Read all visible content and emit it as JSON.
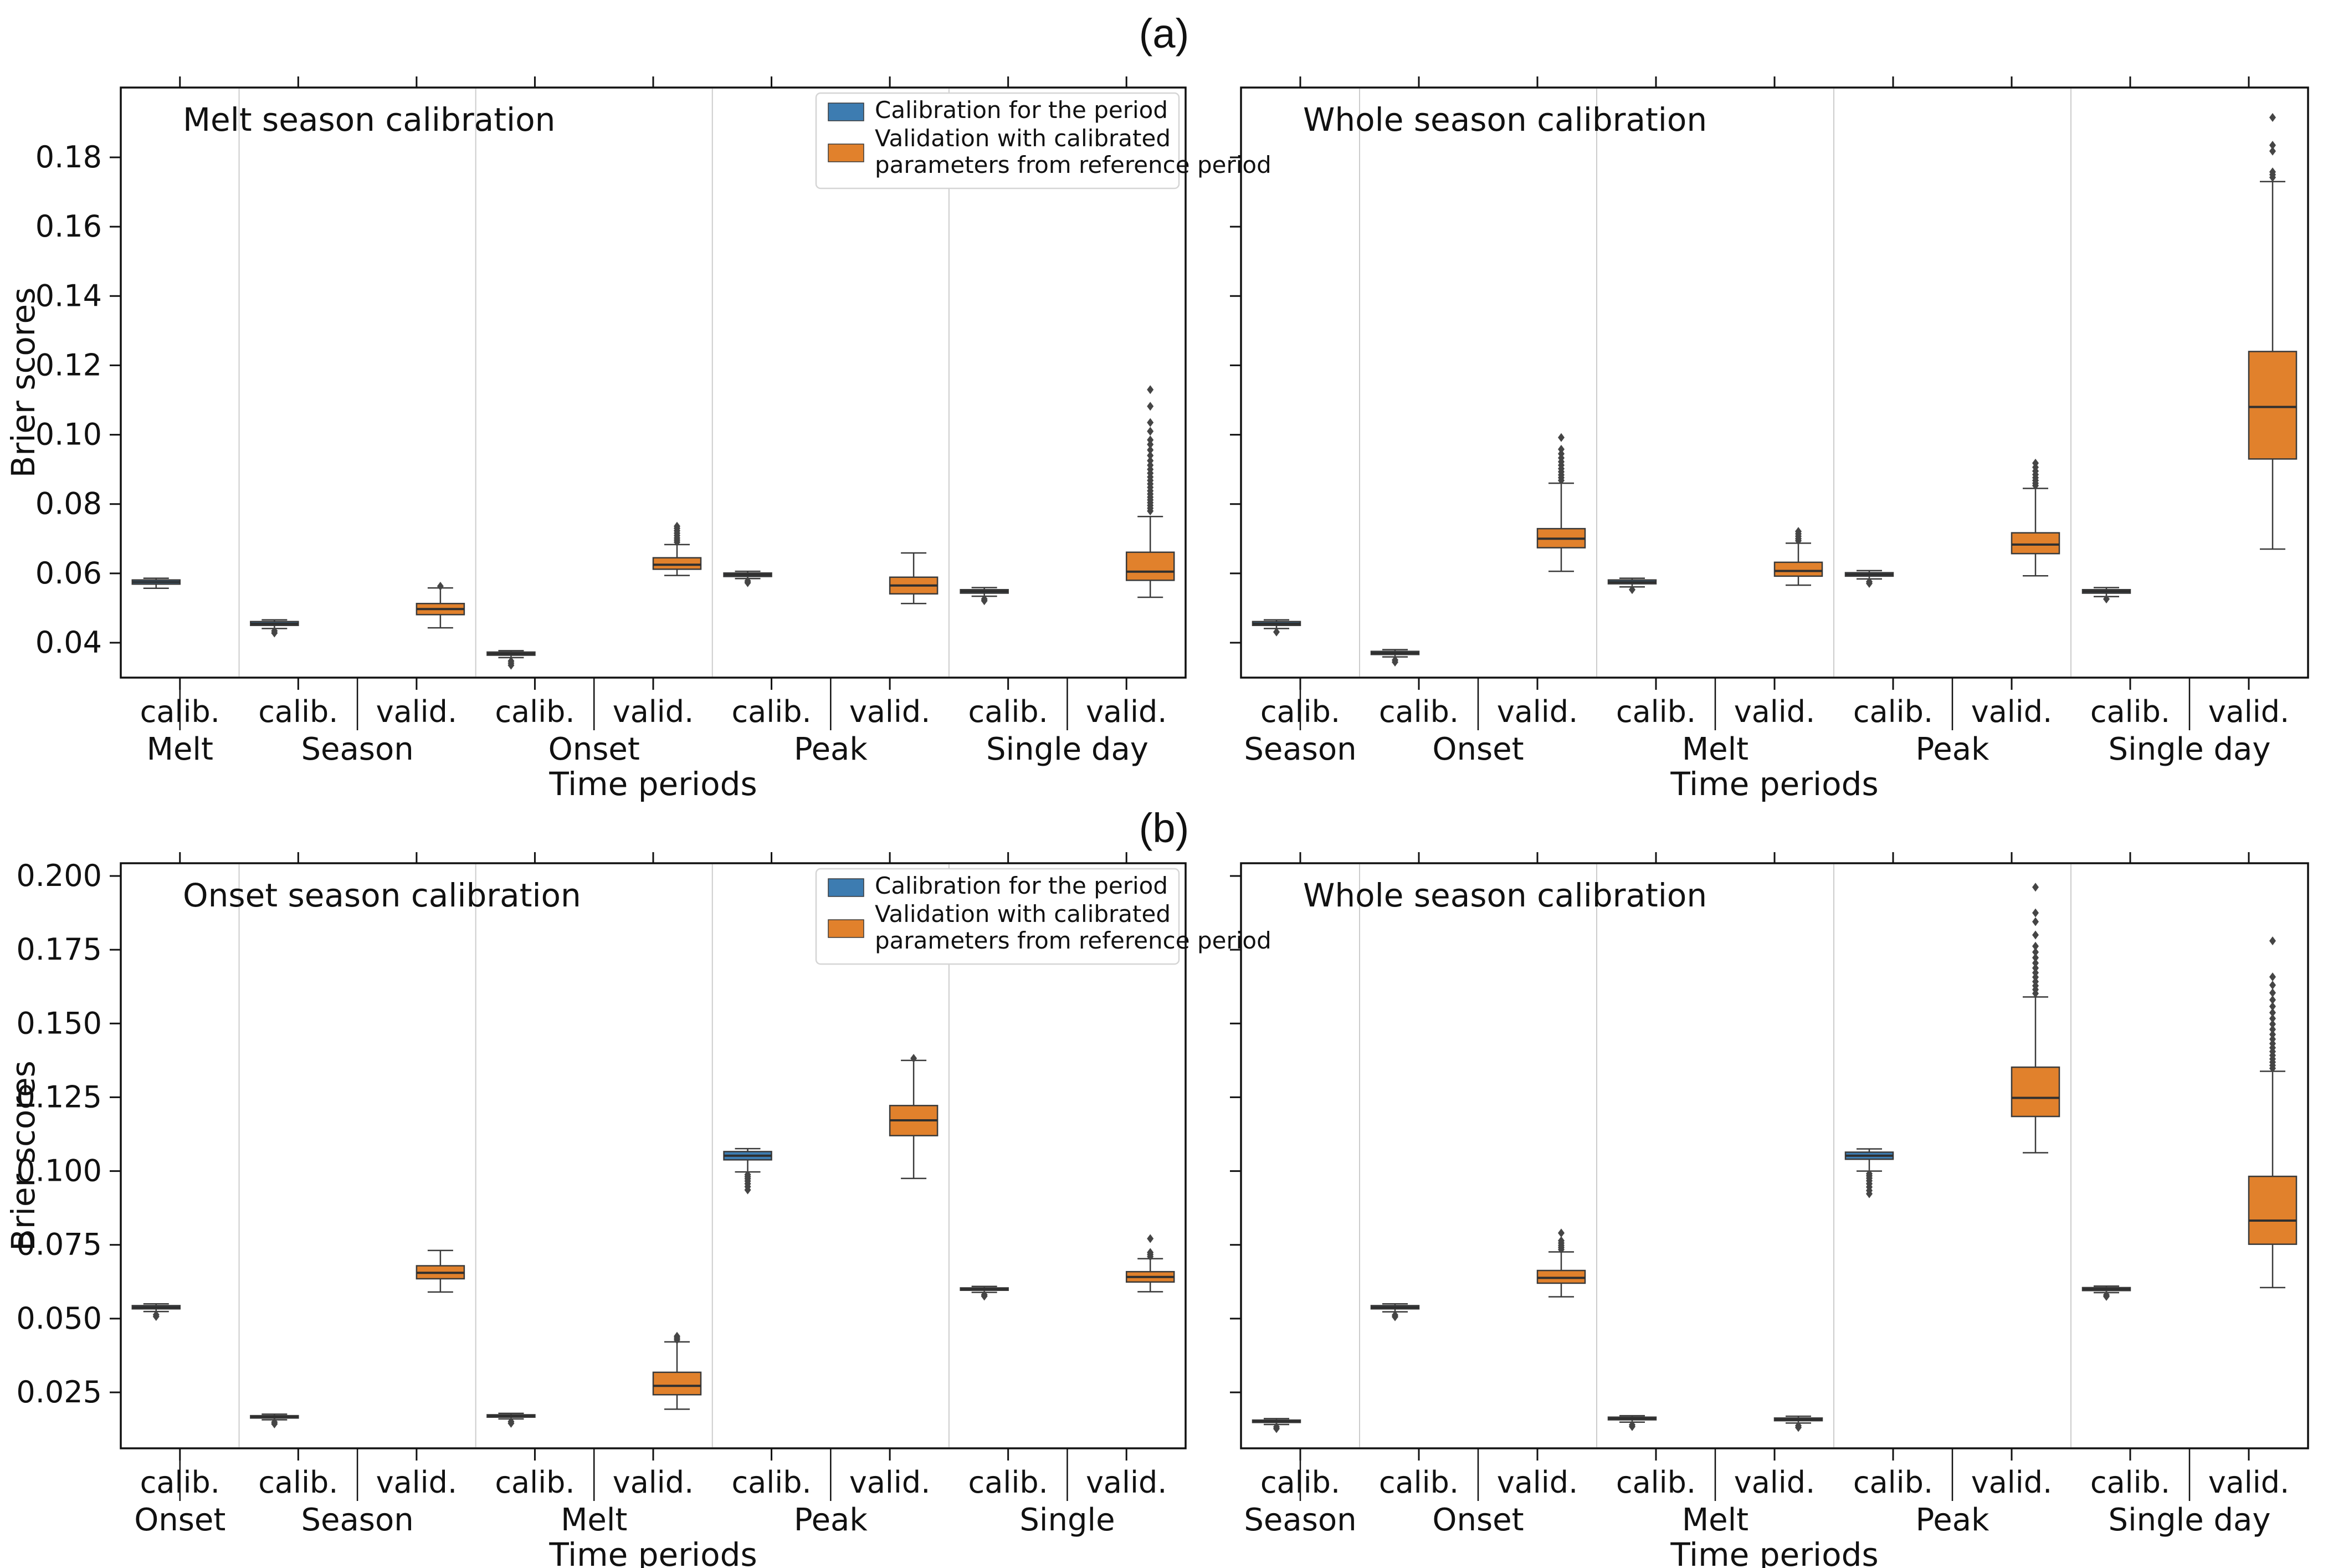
{
  "figure": {
    "panel_label_a": "(a)",
    "panel_label_b": "(b)",
    "ylabel": "Brier scores",
    "xlabel": "Time periods"
  },
  "legend": {
    "items": [
      {
        "key": "calib",
        "label": "Calibration for the period"
      },
      {
        "key": "valid",
        "label": "Validation with calibrated\n parameters from reference period"
      }
    ]
  },
  "colors": {
    "calib_fill": "#3d7cb1",
    "valid_fill": "#e1812c",
    "box_edge": "#3a3a3a",
    "median": "#2f2f2f",
    "outlier": "#454545",
    "separator": "#cccccc",
    "spine": "#111111",
    "legend_border": "#d5d5d5"
  },
  "chart_data": [
    {
      "id": "a_left",
      "row": "a",
      "col": "left",
      "type": "box",
      "title": "Melt season calibration",
      "ylabel": "Brier scores",
      "xlabel": "Time periods",
      "show_ytick_labels": true,
      "show_legend": true,
      "ytick_labels": [
        "0.04",
        "0.06",
        "0.08",
        "0.10",
        "0.12",
        "0.14",
        "0.16",
        "0.18"
      ],
      "ytick_values": [
        0.04,
        0.06,
        0.08,
        0.1,
        0.12,
        0.14,
        0.16,
        0.18
      ],
      "ylim": [
        0.03,
        0.2
      ],
      "groups": [
        {
          "label": "Melt",
          "boxes": [
            {
              "series": "calib",
              "tick_label": "calib.",
              "median": 0.0575,
              "q1": 0.0569,
              "q3": 0.0581,
              "whislo": 0.0557,
              "whishi": 0.0586,
              "outliers": []
            }
          ]
        },
        {
          "label": "Season",
          "boxes": [
            {
              "series": "calib",
              "tick_label": "calib.",
              "median": 0.0455,
              "q1": 0.045,
              "q3": 0.0461,
              "whislo": 0.0441,
              "whishi": 0.0466,
              "outliers": [
                0.0434,
                0.0428
              ]
            },
            {
              "series": "valid",
              "tick_label": "valid.",
              "median": 0.0497,
              "q1": 0.0481,
              "q3": 0.0513,
              "whislo": 0.0443,
              "whishi": 0.0558,
              "outliers": [
                0.0563
              ]
            }
          ]
        },
        {
          "label": "Onset",
          "boxes": [
            {
              "series": "calib",
              "tick_label": "calib.",
              "median": 0.0368,
              "q1": 0.0364,
              "q3": 0.0373,
              "whislo": 0.0357,
              "whishi": 0.0377,
              "outliers": [
                0.0347,
                0.0341,
                0.0335
              ]
            },
            {
              "series": "valid",
              "tick_label": "valid.",
              "median": 0.0625,
              "q1": 0.0612,
              "q3": 0.0645,
              "whislo": 0.0594,
              "whishi": 0.0683,
              "outliers": [
                0.069,
                0.0696,
                0.0702,
                0.0709,
                0.0716,
                0.0723,
                0.073,
                0.0736
              ]
            }
          ]
        },
        {
          "label": "Peak",
          "boxes": [
            {
              "series": "calib",
              "tick_label": "calib.",
              "median": 0.0596,
              "q1": 0.0591,
              "q3": 0.0601,
              "whislo": 0.0585,
              "whishi": 0.0606,
              "outliers": [
                0.0578,
                0.0573
              ]
            },
            {
              "series": "valid",
              "tick_label": "valid.",
              "median": 0.0565,
              "q1": 0.0541,
              "q3": 0.0589,
              "whislo": 0.0513,
              "whishi": 0.0659,
              "outliers": []
            }
          ]
        },
        {
          "label": "Single day",
          "boxes": [
            {
              "series": "calib",
              "tick_label": "calib.",
              "median": 0.0548,
              "q1": 0.0543,
              "q3": 0.0553,
              "whislo": 0.0534,
              "whishi": 0.0559,
              "outliers": [
                0.0526,
                0.0521
              ]
            },
            {
              "series": "valid",
              "tick_label": "valid.",
              "median": 0.0605,
              "q1": 0.058,
              "q3": 0.0661,
              "whislo": 0.0531,
              "whishi": 0.0764,
              "outliers": [
                0.078,
                0.0788,
                0.0796,
                0.0804,
                0.0812,
                0.082,
                0.0829,
                0.0838,
                0.0848,
                0.0858,
                0.0868,
                0.0878,
                0.0889,
                0.09,
                0.0912,
                0.0925,
                0.094,
                0.0956,
                0.0972,
                0.0985,
                0.101,
                0.1035,
                0.1082,
                0.113
              ]
            }
          ]
        }
      ]
    },
    {
      "id": "a_right",
      "row": "a",
      "col": "right",
      "type": "box",
      "title": "Whole season calibration",
      "ylabel": null,
      "xlabel": "Time periods",
      "show_ytick_labels": false,
      "show_legend": false,
      "ytick_labels": [
        "0.04",
        "0.06",
        "0.08",
        "0.10",
        "0.12",
        "0.14",
        "0.16",
        "0.18"
      ],
      "ytick_values": [
        0.04,
        0.06,
        0.08,
        0.1,
        0.12,
        0.14,
        0.16,
        0.18
      ],
      "ylim": [
        0.03,
        0.2
      ],
      "groups": [
        {
          "label": "Season",
          "boxes": [
            {
              "series": "calib",
              "tick_label": "calib.",
              "median": 0.0455,
              "q1": 0.045,
              "q3": 0.0461,
              "whislo": 0.0441,
              "whishi": 0.0466,
              "outliers": [
                0.0431
              ]
            }
          ]
        },
        {
          "label": "Onset",
          "boxes": [
            {
              "series": "calib",
              "tick_label": "calib.",
              "median": 0.037,
              "q1": 0.0366,
              "q3": 0.0375,
              "whislo": 0.0359,
              "whishi": 0.038,
              "outliers": [
                0.035,
                0.0344
              ]
            },
            {
              "series": "valid",
              "tick_label": "valid.",
              "median": 0.07,
              "q1": 0.0674,
              "q3": 0.0729,
              "whislo": 0.0606,
              "whishi": 0.086,
              "outliers": [
                0.0868,
                0.0876,
                0.0884,
                0.0893,
                0.0902,
                0.0912,
                0.0922,
                0.0933,
                0.0945,
                0.0958,
                0.0992
              ]
            }
          ]
        },
        {
          "label": "Melt",
          "boxes": [
            {
              "series": "calib",
              "tick_label": "calib.",
              "median": 0.0575,
              "q1": 0.057,
              "q3": 0.0581,
              "whislo": 0.0561,
              "whishi": 0.0586,
              "outliers": [
                0.0553
              ]
            },
            {
              "series": "valid",
              "tick_label": "valid.",
              "median": 0.0607,
              "q1": 0.0592,
              "q3": 0.0632,
              "whislo": 0.0566,
              "whishi": 0.0687,
              "outliers": [
                0.0694,
                0.07,
                0.0707,
                0.0714,
                0.0721
              ]
            }
          ]
        },
        {
          "label": "Peak",
          "boxes": [
            {
              "series": "calib",
              "tick_label": "calib.",
              "median": 0.0597,
              "q1": 0.0592,
              "q3": 0.0602,
              "whislo": 0.0584,
              "whishi": 0.0608,
              "outliers": [
                0.0576,
                0.0571
              ]
            },
            {
              "series": "valid",
              "tick_label": "valid.",
              "median": 0.0683,
              "q1": 0.0657,
              "q3": 0.0717,
              "whislo": 0.0593,
              "whishi": 0.0845,
              "outliers": [
                0.0853,
                0.086,
                0.0868,
                0.0876,
                0.0885,
                0.0895,
                0.0906,
                0.0918
              ]
            }
          ]
        },
        {
          "label": "Single day",
          "boxes": [
            {
              "series": "calib",
              "tick_label": "calib.",
              "median": 0.0548,
              "q1": 0.0543,
              "q3": 0.0553,
              "whislo": 0.0533,
              "whishi": 0.0559,
              "outliers": [
                0.0526
              ]
            },
            {
              "series": "valid",
              "tick_label": "valid.",
              "median": 0.108,
              "q1": 0.093,
              "q3": 0.124,
              "whislo": 0.067,
              "whishi": 0.173,
              "outliers": [
                0.1742,
                0.175,
                0.1758,
                0.1818,
                0.1835,
                0.1915
              ]
            }
          ]
        }
      ]
    },
    {
      "id": "b_left",
      "row": "b",
      "col": "left",
      "type": "box",
      "title": "Onset season calibration",
      "ylabel": "Brier scores",
      "xlabel": "Time periods",
      "show_ytick_labels": true,
      "show_legend": true,
      "ytick_labels": [
        "0.025",
        "0.050",
        "0.075",
        "0.100",
        "0.125",
        "0.150",
        "0.175",
        "0.200"
      ],
      "ytick_values": [
        0.025,
        0.05,
        0.075,
        0.1,
        0.125,
        0.15,
        0.175,
        0.2
      ],
      "ylim": [
        0.006,
        0.204
      ],
      "groups": [
        {
          "label": "Onset",
          "boxes": [
            {
              "series": "calib",
              "tick_label": "calib.",
              "median": 0.0538,
              "q1": 0.0533,
              "q3": 0.0544,
              "whislo": 0.0524,
              "whishi": 0.055,
              "outliers": [
                0.0513,
                0.0507
              ]
            }
          ]
        },
        {
          "label": "Season",
          "boxes": [
            {
              "series": "calib",
              "tick_label": "calib.",
              "median": 0.0167,
              "q1": 0.0163,
              "q3": 0.0171,
              "whislo": 0.0157,
              "whishi": 0.0176,
              "outliers": [
                0.0149,
                0.0143
              ]
            },
            {
              "series": "valid",
              "tick_label": "valid.",
              "median": 0.0655,
              "q1": 0.0635,
              "q3": 0.0679,
              "whislo": 0.059,
              "whishi": 0.0731,
              "outliers": []
            }
          ]
        },
        {
          "label": "Melt",
          "boxes": [
            {
              "series": "calib",
              "tick_label": "calib.",
              "median": 0.017,
              "q1": 0.0166,
              "q3": 0.0174,
              "whislo": 0.016,
              "whishi": 0.0179,
              "outliers": [
                0.0151,
                0.0145
              ]
            },
            {
              "series": "valid",
              "tick_label": "valid.",
              "median": 0.0272,
              "q1": 0.0242,
              "q3": 0.0318,
              "whislo": 0.0193,
              "whishi": 0.0421,
              "outliers": [
                0.0428,
                0.0434,
                0.044
              ]
            }
          ]
        },
        {
          "label": "Peak",
          "boxes": [
            {
              "series": "calib",
              "tick_label": "calib.",
              "median": 0.1052,
              "q1": 0.1038,
              "q3": 0.1066,
              "whislo": 0.0997,
              "whishi": 0.1076,
              "outliers": [
                0.0988,
                0.0981,
                0.0974,
                0.0966,
                0.0957,
                0.0947,
                0.0936
              ]
            },
            {
              "series": "valid",
              "tick_label": "valid.",
              "median": 0.1172,
              "q1": 0.112,
              "q3": 0.1222,
              "whislo": 0.0975,
              "whishi": 0.1375,
              "outliers": [
                0.1382
              ]
            }
          ]
        },
        {
          "label": "Single",
          "boxes": [
            {
              "series": "calib",
              "tick_label": "calib.",
              "median": 0.06,
              "q1": 0.0596,
              "q3": 0.0604,
              "whislo": 0.0589,
              "whishi": 0.0609,
              "outliers": [
                0.0581,
                0.0576
              ]
            },
            {
              "series": "valid",
              "tick_label": "valid.",
              "median": 0.0641,
              "q1": 0.0624,
              "q3": 0.0659,
              "whislo": 0.0591,
              "whishi": 0.0703,
              "outliers": [
                0.071,
                0.0717,
                0.0724,
                0.0771
              ]
            }
          ]
        }
      ]
    },
    {
      "id": "b_right",
      "row": "b",
      "col": "right",
      "type": "box",
      "title": "Whole season calibration",
      "ylabel": null,
      "xlabel": "Time periods",
      "show_ytick_labels": false,
      "show_legend": false,
      "ytick_labels": [
        "0.025",
        "0.050",
        "0.075",
        "0.100",
        "0.125",
        "0.150",
        "0.175",
        "0.200"
      ],
      "ytick_values": [
        0.025,
        0.05,
        0.075,
        0.1,
        0.125,
        0.15,
        0.175,
        0.2
      ],
      "ylim": [
        0.006,
        0.204
      ],
      "groups": [
        {
          "label": "Season",
          "boxes": [
            {
              "series": "calib",
              "tick_label": "calib.",
              "median": 0.0152,
              "q1": 0.0148,
              "q3": 0.0156,
              "whislo": 0.0141,
              "whishi": 0.0161,
              "outliers": [
                0.0133,
                0.0127
              ]
            }
          ]
        },
        {
          "label": "Onset",
          "boxes": [
            {
              "series": "calib",
              "tick_label": "calib.",
              "median": 0.0538,
              "q1": 0.0533,
              "q3": 0.0544,
              "whislo": 0.0523,
              "whishi": 0.055,
              "outliers": [
                0.0512,
                0.0506
              ]
            },
            {
              "series": "valid",
              "tick_label": "valid.",
              "median": 0.0638,
              "q1": 0.062,
              "q3": 0.0663,
              "whislo": 0.0574,
              "whishi": 0.0726,
              "outliers": [
                0.0734,
                0.0741,
                0.0748,
                0.0756,
                0.0764,
                0.079
              ]
            }
          ]
        },
        {
          "label": "Melt",
          "boxes": [
            {
              "series": "calib",
              "tick_label": "calib.",
              "median": 0.0161,
              "q1": 0.0157,
              "q3": 0.0166,
              "whislo": 0.0149,
              "whishi": 0.0171,
              "outliers": [
                0.014,
                0.0134
              ]
            },
            {
              "series": "valid",
              "tick_label": "valid.",
              "median": 0.0158,
              "q1": 0.0154,
              "q3": 0.0163,
              "whislo": 0.0146,
              "whishi": 0.0169,
              "outliers": [
                0.0137,
                0.0131
              ]
            }
          ]
        },
        {
          "label": "Peak",
          "boxes": [
            {
              "series": "calib",
              "tick_label": "calib.",
              "median": 0.1052,
              "q1": 0.104,
              "q3": 0.1064,
              "whislo": 0.1,
              "whishi": 0.1075,
              "outliers": [
                0.0991,
                0.0984,
                0.0976,
                0.0967,
                0.0957,
                0.0946,
                0.0934,
                0.0923
              ]
            },
            {
              "series": "valid",
              "tick_label": "valid.",
              "median": 0.1248,
              "q1": 0.1185,
              "q3": 0.1352,
              "whislo": 0.1062,
              "whishi": 0.159,
              "outliers": [
                0.1602,
                0.1615,
                0.1628,
                0.1642,
                0.1657,
                0.1672,
                0.1688,
                0.1705,
                0.1723,
                0.1742,
                0.1762,
                0.18,
                0.1845,
                0.1875,
                0.1962
              ]
            }
          ]
        },
        {
          "label": "Single day",
          "boxes": [
            {
              "series": "calib",
              "tick_label": "calib.",
              "median": 0.06,
              "q1": 0.0595,
              "q3": 0.0605,
              "whislo": 0.0588,
              "whishi": 0.061,
              "outliers": [
                0.058,
                0.0575
              ]
            },
            {
              "series": "valid",
              "tick_label": "valid.",
              "median": 0.0832,
              "q1": 0.0752,
              "q3": 0.0982,
              "whislo": 0.0605,
              "whishi": 0.1338,
              "outliers": [
                0.1348,
                0.1358,
                0.1369,
                0.138,
                0.1392,
                0.1405,
                0.1418,
                0.1432,
                0.1447,
                0.1463,
                0.148,
                0.1498,
                0.1517,
                0.1537,
                0.1558,
                0.158,
                0.1604,
                0.163,
                0.1658,
                0.178
              ]
            }
          ]
        }
      ]
    }
  ]
}
